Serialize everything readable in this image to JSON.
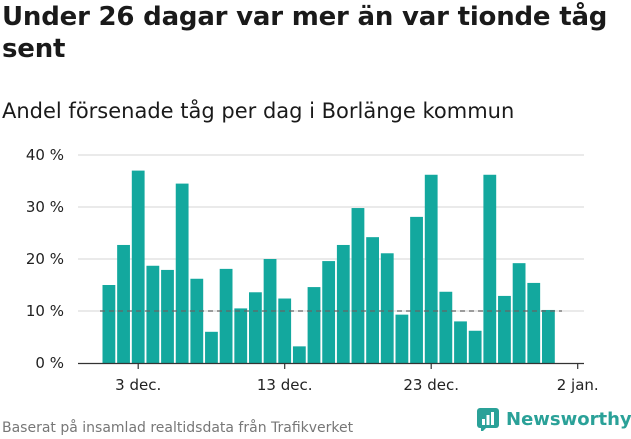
{
  "header": {
    "title": "Under 26 dagar var mer än var tionde tåg sent",
    "subtitle": "Andel försenade tåg per dag i Borlänge kommun"
  },
  "footer": {
    "source": "Baserat på insamlad realtidsdata från Trafikverket",
    "brand": "Newsworthy"
  },
  "colors": {
    "bar": "#13a89e",
    "grid": "#dddddd",
    "reference_line": "#666666",
    "brand": "#2aa198"
  },
  "chart_data": {
    "type": "bar",
    "title": "Under 26 dagar var mer än var tionde tåg sent",
    "subtitle": "Andel försenade tåg per dag i Borlänge kommun",
    "xlabel": "",
    "ylabel": "",
    "unit": "%",
    "ylim": [
      0,
      40
    ],
    "grid": true,
    "y_ticks": [
      {
        "value": 0,
        "label": "0 %"
      },
      {
        "value": 10,
        "label": "10 %"
      },
      {
        "value": 20,
        "label": "20 %"
      },
      {
        "value": 30,
        "label": "30 %"
      },
      {
        "value": 40,
        "label": "40 %"
      }
    ],
    "x_ticks": [
      {
        "index": 2,
        "label": "3 dec."
      },
      {
        "index": 12,
        "label": "13 dec."
      },
      {
        "index": 22,
        "label": "23 dec."
      },
      {
        "index": 32,
        "label": "2 jan."
      }
    ],
    "reference_line": {
      "value": 10,
      "style": "dashed"
    },
    "categories": [
      "2024-12-01",
      "2024-12-02",
      "2024-12-03",
      "2024-12-04",
      "2024-12-05",
      "2024-12-06",
      "2024-12-07",
      "2024-12-08",
      "2024-12-09",
      "2024-12-10",
      "2024-12-11",
      "2024-12-12",
      "2024-12-13",
      "2024-12-14",
      "2024-12-15",
      "2024-12-16",
      "2024-12-17",
      "2024-12-18",
      "2024-12-19",
      "2024-12-20",
      "2024-12-21",
      "2024-12-22",
      "2024-12-23",
      "2024-12-24",
      "2024-12-25",
      "2024-12-26",
      "2024-12-27",
      "2024-12-28",
      "2024-12-29",
      "2024-12-30",
      "2024-12-31"
    ],
    "values": [
      15,
      22.7,
      37,
      18.7,
      17.9,
      34.5,
      16.2,
      6,
      18.1,
      10.5,
      13.6,
      20,
      12.4,
      3.2,
      14.6,
      19.6,
      22.7,
      29.8,
      24.2,
      21.1,
      9.3,
      28.1,
      36.2,
      13.7,
      8,
      6.2,
      36.2,
      12.9,
      19.2,
      15.4,
      10.2
    ]
  }
}
